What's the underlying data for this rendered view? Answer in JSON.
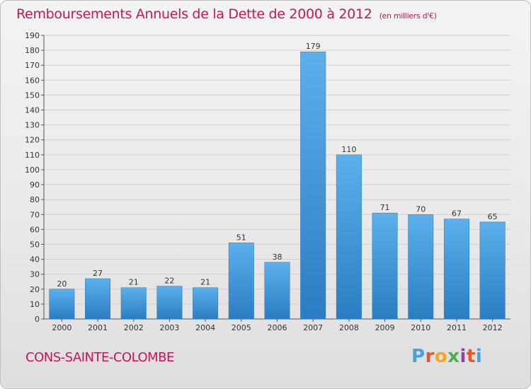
{
  "title": "Remboursements Annuels de la Dette de 2000 à 2012",
  "unit_note": "(en milliers d'€)",
  "city": "CONS-SAINTE-COLOMBE",
  "logo": {
    "letters": [
      "P",
      "r",
      "o",
      "x",
      "i",
      "t",
      "i"
    ],
    "colors": [
      "#4aa0d8",
      "#e25a2c",
      "#f5a623",
      "#4caf50",
      "#8e44ad",
      "#e25a2c",
      "#4aa0d8"
    ]
  },
  "colors": {
    "bar": "#4a9fe0",
    "bar_dark": "#2c7fc4",
    "title": "#c2185b",
    "grid": "#cfcfcf"
  },
  "chart_data": {
    "type": "bar",
    "categories": [
      "2000",
      "2001",
      "2002",
      "2003",
      "2004",
      "2005",
      "2006",
      "2007",
      "2008",
      "2009",
      "2010",
      "2011",
      "2012"
    ],
    "values": [
      20,
      27,
      21,
      22,
      21,
      51,
      38,
      179,
      110,
      71,
      70,
      67,
      65
    ],
    "ylim": [
      0,
      190
    ],
    "yticks": [
      0,
      10,
      20,
      30,
      40,
      50,
      60,
      70,
      80,
      90,
      100,
      110,
      120,
      130,
      140,
      150,
      160,
      170,
      180,
      190
    ],
    "grid": true
  }
}
